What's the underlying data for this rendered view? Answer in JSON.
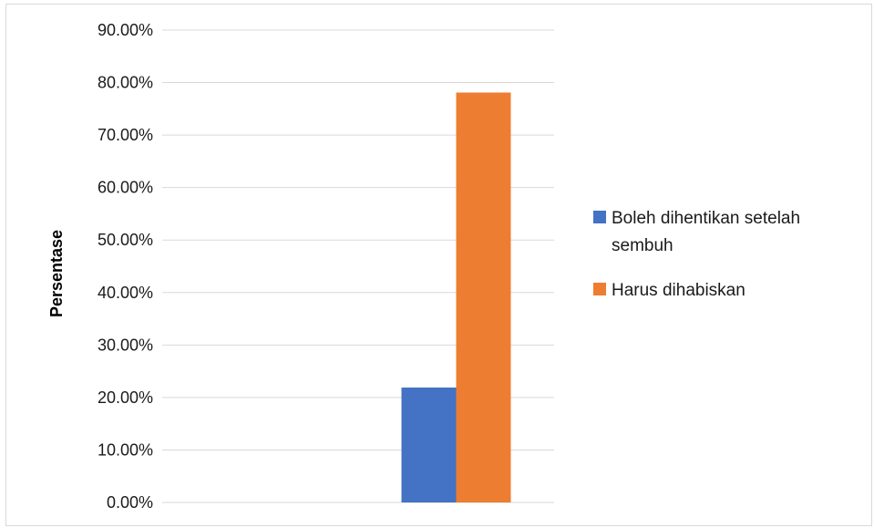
{
  "chart_data": {
    "type": "bar",
    "title": "",
    "xlabel": "",
    "ylabel": "Persentase",
    "ylim": [
      0,
      90
    ],
    "yticks": [
      "0.00%",
      "10.00%",
      "20.00%",
      "30.00%",
      "40.00%",
      "50.00%",
      "60.00%",
      "70.00%",
      "80.00%",
      "90.00%"
    ],
    "grid": true,
    "legend_position": "right",
    "categories": [
      ""
    ],
    "series": [
      {
        "name": "Boleh dihentikan setelah sembuh",
        "legend_lines": [
          "Boleh dihentikan setelah",
          "sembuh"
        ],
        "values": [
          21.9
        ],
        "color": "#4472c4"
      },
      {
        "name": "Harus dihabiskan",
        "legend_lines": [
          "Harus dihabiskan"
        ],
        "values": [
          78.1
        ],
        "color": "#ed7d31"
      }
    ]
  }
}
